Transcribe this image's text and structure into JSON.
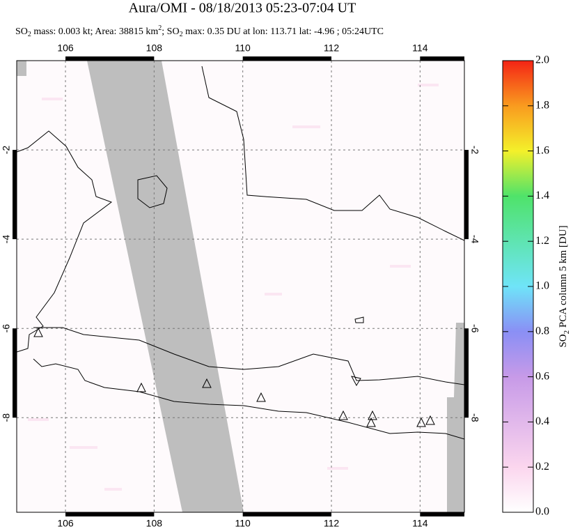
{
  "title": "Aura/OMI - 08/18/2013 05:23-07:04 UT",
  "subtitle_parts": [
    "SO",
    "2",
    " mass: 0.003 kt; Area: 38815 km",
    "2",
    "; SO",
    "2",
    " max: 0.35 DU at lon: 113.71 lat: -4.96 ; 05:24UTC"
  ],
  "map": {
    "lonlim": [
      104.9,
      115
    ],
    "latlim": [
      -10.12,
      0
    ],
    "lon_ticks": [
      106,
      108,
      110,
      112,
      114
    ],
    "lat_ticks": [
      -2,
      -4,
      -6,
      -8
    ],
    "grid": true
  },
  "colorbar": {
    "label_parts": [
      "SO",
      "2",
      " PCA column 5 km [DU]"
    ],
    "lim": [
      0,
      2
    ],
    "ticks": [
      {
        "value": 0,
        "label": "0.0"
      },
      {
        "value": 0.2,
        "label": "0.2"
      },
      {
        "value": 0.4,
        "label": "0.4"
      },
      {
        "value": 0.6,
        "label": "0.6"
      },
      {
        "value": 0.8,
        "label": "0.8"
      },
      {
        "value": 1,
        "label": "1.0"
      },
      {
        "value": 1.2,
        "label": "1.2"
      },
      {
        "value": 1.4,
        "label": "1.4"
      },
      {
        "value": 1.6,
        "label": "1.6"
      },
      {
        "value": 1.8,
        "label": "1.8"
      },
      {
        "value": 2,
        "label": "2.0"
      }
    ]
  }
}
